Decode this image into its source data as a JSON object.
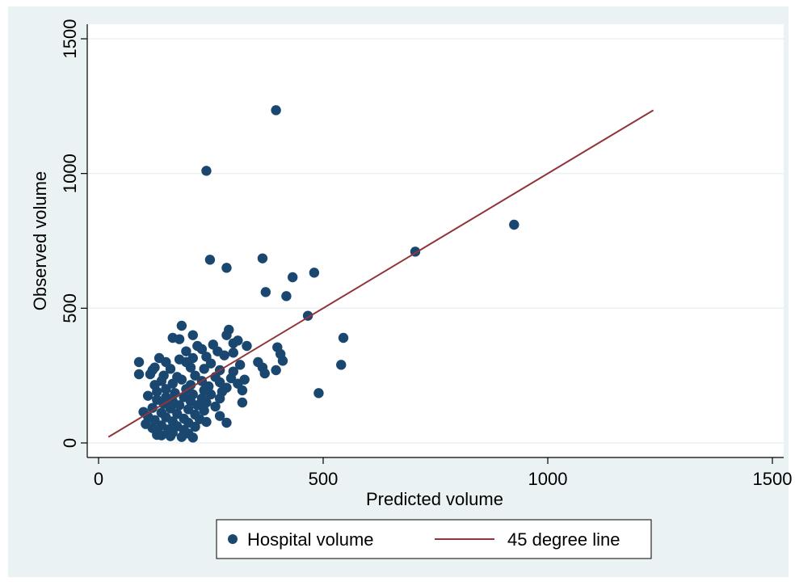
{
  "chart_data": {
    "type": "scatter",
    "title": "",
    "xlabel": "Predicted volume",
    "ylabel": "Observed volume",
    "xlim": [
      0,
      1500
    ],
    "ylim": [
      0,
      1500
    ],
    "x_ticks": [
      0,
      500,
      1000,
      1500
    ],
    "y_ticks": [
      0,
      500,
      1000,
      1500
    ],
    "x_tick_labels": [
      "0",
      "500",
      "1000",
      "1500"
    ],
    "y_tick_labels": [
      "0",
      "500",
      "1000",
      "1500"
    ],
    "grid": "horizontal",
    "legend_position": "bottom",
    "series": [
      {
        "name": "Hospital volume",
        "kind": "scatter",
        "color": "#1a476f",
        "points": [
          [
            395,
            1235
          ],
          [
            240,
            1010
          ],
          [
            925,
            810
          ],
          [
            705,
            710
          ],
          [
            365,
            685
          ],
          [
            248,
            680
          ],
          [
            285,
            650
          ],
          [
            480,
            632
          ],
          [
            432,
            615
          ],
          [
            372,
            560
          ],
          [
            418,
            545
          ],
          [
            466,
            472
          ],
          [
            545,
            390
          ],
          [
            540,
            290
          ],
          [
            490,
            185
          ],
          [
            398,
            355
          ],
          [
            405,
            330
          ],
          [
            410,
            305
          ],
          [
            395,
            270
          ],
          [
            355,
            300
          ],
          [
            365,
            280
          ],
          [
            370,
            258
          ],
          [
            185,
            435
          ],
          [
            290,
            420
          ],
          [
            285,
            400
          ],
          [
            210,
            400
          ],
          [
            165,
            390
          ],
          [
            180,
            385
          ],
          [
            310,
            380
          ],
          [
            300,
            370
          ],
          [
            330,
            360
          ],
          [
            255,
            365
          ],
          [
            220,
            360
          ],
          [
            230,
            348
          ],
          [
            195,
            340
          ],
          [
            265,
            340
          ],
          [
            300,
            335
          ],
          [
            280,
            325
          ],
          [
            240,
            320
          ],
          [
            210,
            315
          ],
          [
            135,
            315
          ],
          [
            180,
            310
          ],
          [
            150,
            300
          ],
          [
            195,
            300
          ],
          [
            250,
            295
          ],
          [
            315,
            290
          ],
          [
            90,
            300
          ],
          [
            125,
            280
          ],
          [
            120,
            270
          ],
          [
            160,
            275
          ],
          [
            205,
            280
          ],
          [
            235,
            275
          ],
          [
            270,
            270
          ],
          [
            300,
            265
          ],
          [
            90,
            255
          ],
          [
            115,
            255
          ],
          [
            145,
            250
          ],
          [
            175,
            245
          ],
          [
            215,
            250
          ],
          [
            260,
            245
          ],
          [
            295,
            240
          ],
          [
            325,
            235
          ],
          [
            140,
            230
          ],
          [
            185,
            235
          ],
          [
            230,
            230
          ],
          [
            270,
            225
          ],
          [
            310,
            220
          ],
          [
            125,
            215
          ],
          [
            165,
            220
          ],
          [
            205,
            215
          ],
          [
            245,
            210
          ],
          [
            285,
            205
          ],
          [
            150,
            200
          ],
          [
            195,
            200
          ],
          [
            235,
            195
          ],
          [
            275,
            190
          ],
          [
            320,
            195
          ],
          [
            130,
            190
          ],
          [
            170,
            185
          ],
          [
            210,
            180
          ],
          [
            250,
            180
          ],
          [
            110,
            175
          ],
          [
            150,
            170
          ],
          [
            190,
            170
          ],
          [
            230,
            165
          ],
          [
            270,
            165
          ],
          [
            130,
            160
          ],
          [
            165,
            155
          ],
          [
            205,
            155
          ],
          [
            240,
            150
          ],
          [
            320,
            150
          ],
          [
            145,
            145
          ],
          [
            180,
            140
          ],
          [
            220,
            140
          ],
          [
            260,
            135
          ],
          [
            120,
            130
          ],
          [
            160,
            128
          ],
          [
            200,
            125
          ],
          [
            235,
            120
          ],
          [
            100,
            115
          ],
          [
            140,
            112
          ],
          [
            175,
            108
          ],
          [
            215,
            105
          ],
          [
            270,
            100
          ],
          [
            110,
            98
          ],
          [
            150,
            95
          ],
          [
            190,
            90
          ],
          [
            225,
            88
          ],
          [
            125,
            85
          ],
          [
            165,
            80
          ],
          [
            200,
            75
          ],
          [
            240,
            78
          ],
          [
            285,
            75
          ],
          [
            105,
            70
          ],
          [
            140,
            65
          ],
          [
            175,
            62
          ],
          [
            215,
            60
          ],
          [
            120,
            55
          ],
          [
            155,
            50
          ],
          [
            190,
            48
          ],
          [
            130,
            40
          ],
          [
            165,
            38
          ],
          [
            200,
            35
          ],
          [
            140,
            28
          ],
          [
            160,
            25
          ],
          [
            185,
            22
          ],
          [
            210,
            20
          ],
          [
            130,
            30
          ]
        ]
      },
      {
        "name": "45 degree line",
        "kind": "line",
        "color": "#90353b",
        "points": [
          [
            22,
            22
          ],
          [
            1235,
            1235
          ]
        ]
      }
    ]
  },
  "legend": {
    "items": [
      {
        "label": "Hospital volume",
        "marker": "circle",
        "color": "#1a476f"
      },
      {
        "label": "45 degree line",
        "marker": "line",
        "color": "#90353b"
      }
    ]
  },
  "colors": {
    "outer_background": "#eaf2f3",
    "plot_background": "#ffffff",
    "grid": "#eaf2f3",
    "axis": "#000000"
  }
}
